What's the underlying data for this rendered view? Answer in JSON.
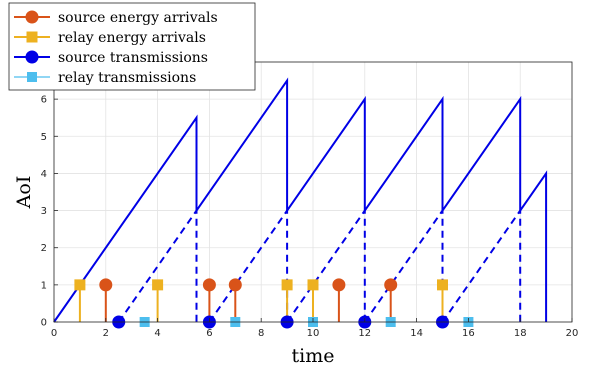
{
  "chart_data": {
    "type": "line",
    "xlabel": "time",
    "ylabel": "AoI",
    "xlim": [
      0,
      20
    ],
    "ylim": [
      0,
      7
    ],
    "xticks": [
      0,
      2,
      4,
      6,
      8,
      10,
      12,
      14,
      16,
      18,
      20
    ],
    "yticks": [
      0,
      1,
      2,
      3,
      4,
      5,
      6,
      7
    ],
    "grid": true,
    "legend_position": "top-left",
    "legend": {
      "source_energy": "source energy arrivals",
      "relay_energy": "relay energy arrivals",
      "source_tx": "source transmissions",
      "relay_tx": "relay transmissions"
    },
    "colors": {
      "aoi": "#0000e6",
      "source_energy": "#d95319",
      "relay_energy": "#edb120",
      "source_tx": "#0000e6",
      "relay_tx": "#4dbeee"
    },
    "aoi_solid": [
      [
        [
          0,
          0
        ],
        [
          5.5,
          5.5
        ],
        [
          5.5,
          3
        ],
        [
          9,
          6.5
        ],
        [
          9,
          3
        ],
        [
          12,
          6
        ],
        [
          12,
          3
        ],
        [
          15,
          6
        ],
        [
          15,
          3
        ],
        [
          18,
          6
        ],
        [
          18,
          3
        ],
        [
          19,
          4
        ],
        [
          19,
          0
        ]
      ]
    ],
    "aoi_dashed": [
      [
        [
          2.5,
          0
        ],
        [
          5.5,
          3
        ],
        [
          5.5,
          0
        ]
      ],
      [
        [
          6,
          0
        ],
        [
          9,
          3
        ],
        [
          9,
          0
        ]
      ],
      [
        [
          9,
          0
        ],
        [
          12,
          3
        ],
        [
          12,
          0
        ]
      ],
      [
        [
          12,
          0
        ],
        [
          15,
          3
        ],
        [
          15,
          0
        ]
      ],
      [
        [
          15,
          0
        ],
        [
          18,
          3
        ],
        [
          18,
          0
        ]
      ]
    ],
    "source_energy_arrivals": [
      2,
      6,
      7,
      11,
      13
    ],
    "relay_energy_arrivals": [
      1,
      4,
      9,
      10,
      15
    ],
    "source_transmissions": [
      2.5,
      6,
      9,
      12,
      15
    ],
    "relay_transmissions": [
      3.5,
      7,
      10,
      13,
      16
    ]
  }
}
